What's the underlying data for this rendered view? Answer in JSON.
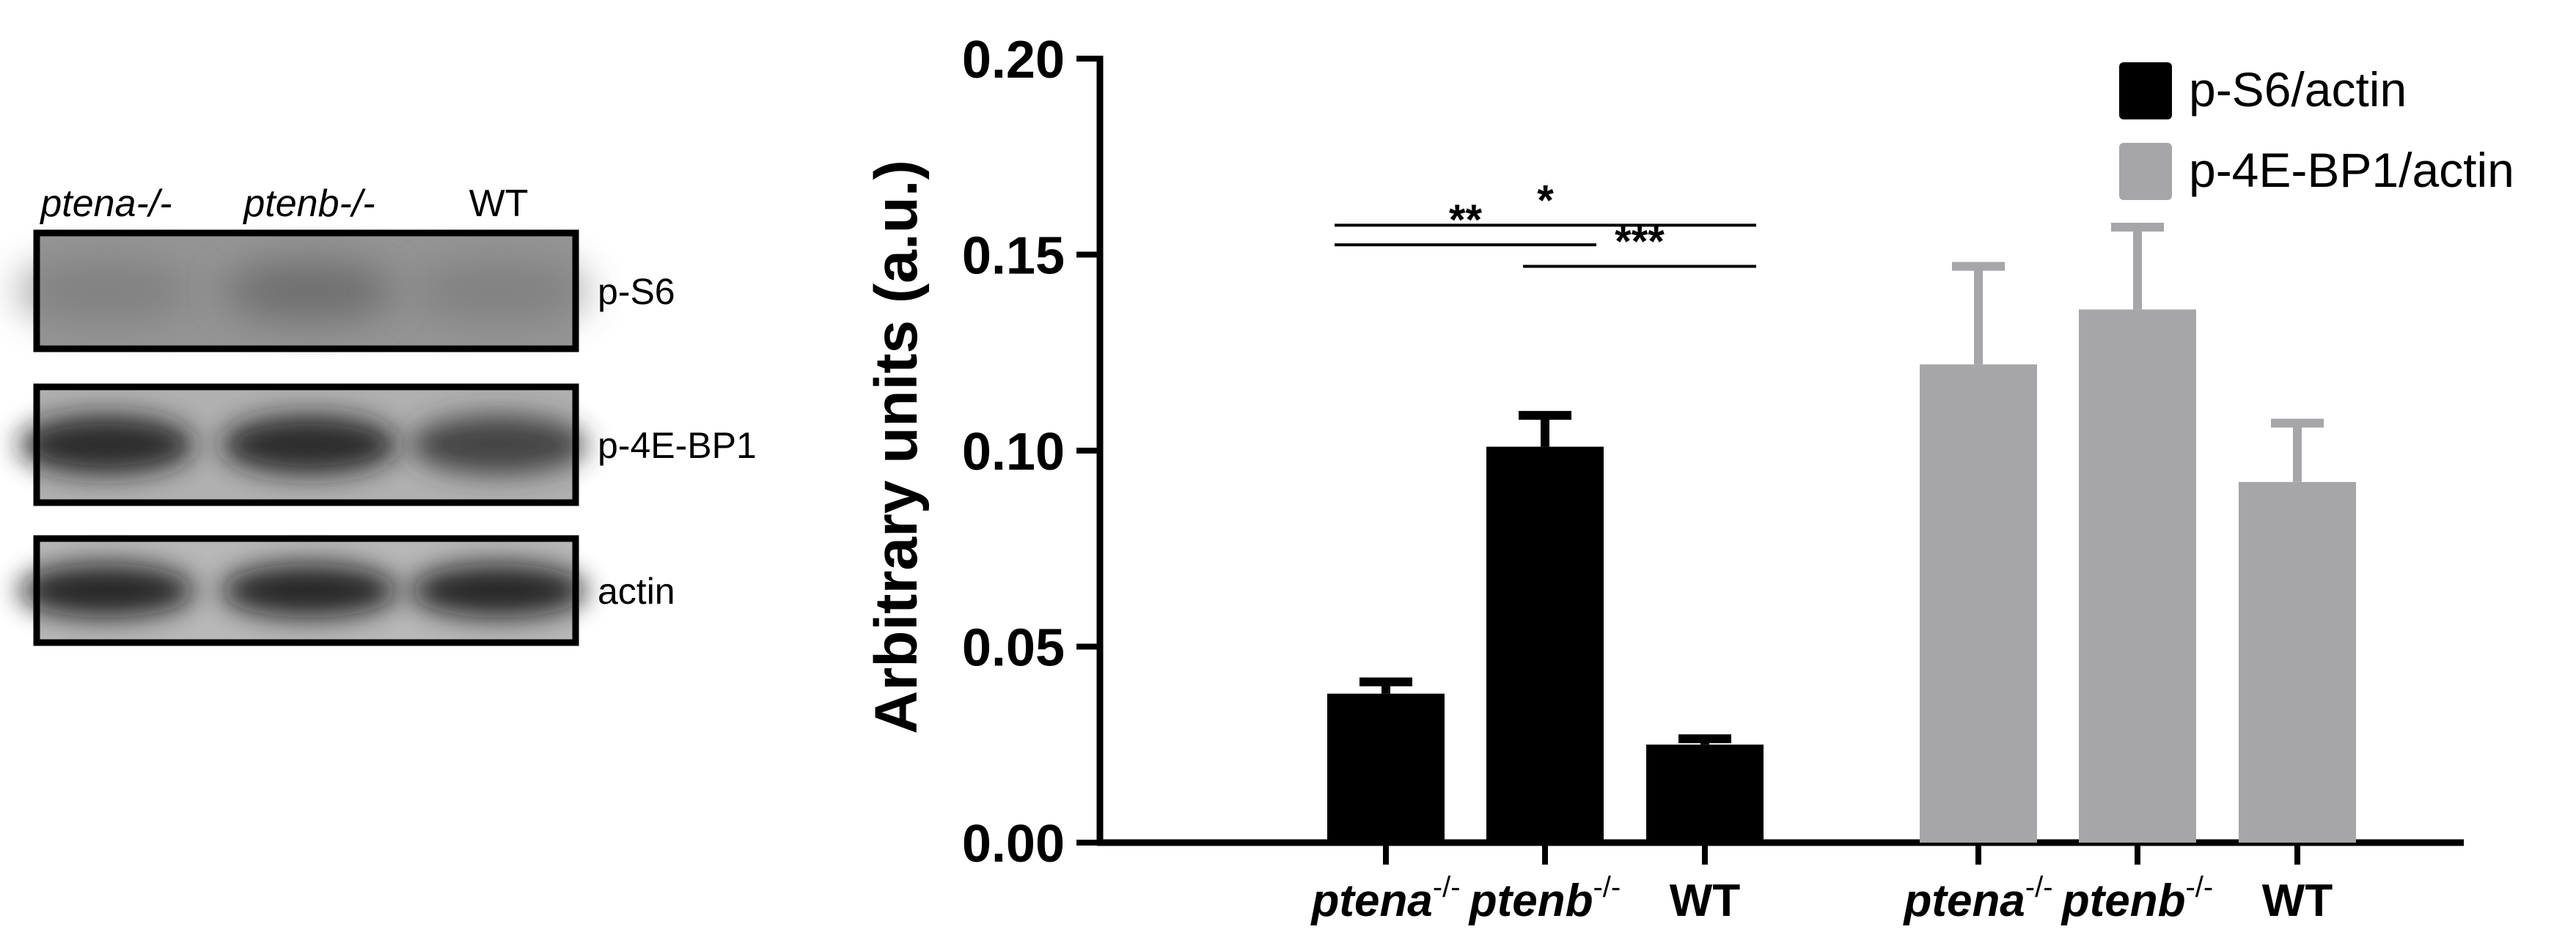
{
  "western_blot": {
    "lanes": [
      {
        "label": "ptena-/-"
      },
      {
        "label": "ptenb-/-"
      },
      {
        "label": "WT"
      }
    ],
    "bands": [
      {
        "label": "p-S6"
      },
      {
        "label": "p-4E-BP1"
      },
      {
        "label": "actin"
      }
    ]
  },
  "chart_data": {
    "type": "bar",
    "xlabel": "",
    "ylabel": "Arbitrary units (a.u.)",
    "ylim": [
      0,
      0.2
    ],
    "yticks": [
      "0.00",
      "0.05",
      "0.10",
      "0.15",
      "0.20"
    ],
    "grid": false,
    "legend_position": "top-right",
    "groups": [
      {
        "series_name": "p-S6/actin",
        "color": "#000000",
        "categories": [
          {
            "base": "ptena",
            "sup": "-/-"
          },
          {
            "base": "ptenb",
            "sup": "-/-"
          },
          {
            "base": "WT",
            "sup": ""
          }
        ],
        "values": [
          0.038,
          0.101,
          0.025
        ],
        "errors": [
          0.003,
          0.008,
          0.0015
        ]
      },
      {
        "series_name": "p-4E-BP1/actin",
        "color": "#a6a6a8",
        "categories": [
          {
            "base": "ptena",
            "sup": "-/-"
          },
          {
            "base": "ptenb",
            "sup": "-/-"
          },
          {
            "base": "WT",
            "sup": ""
          }
        ],
        "values": [
          0.122,
          0.136,
          0.092
        ],
        "errors": [
          0.025,
          0.021,
          0.015
        ]
      }
    ],
    "significance": [
      {
        "from": 0,
        "to": 2,
        "label": "*"
      },
      {
        "from": 0,
        "to": 1,
        "label": "**"
      },
      {
        "from": 1,
        "to": 2,
        "label": "***"
      }
    ]
  }
}
